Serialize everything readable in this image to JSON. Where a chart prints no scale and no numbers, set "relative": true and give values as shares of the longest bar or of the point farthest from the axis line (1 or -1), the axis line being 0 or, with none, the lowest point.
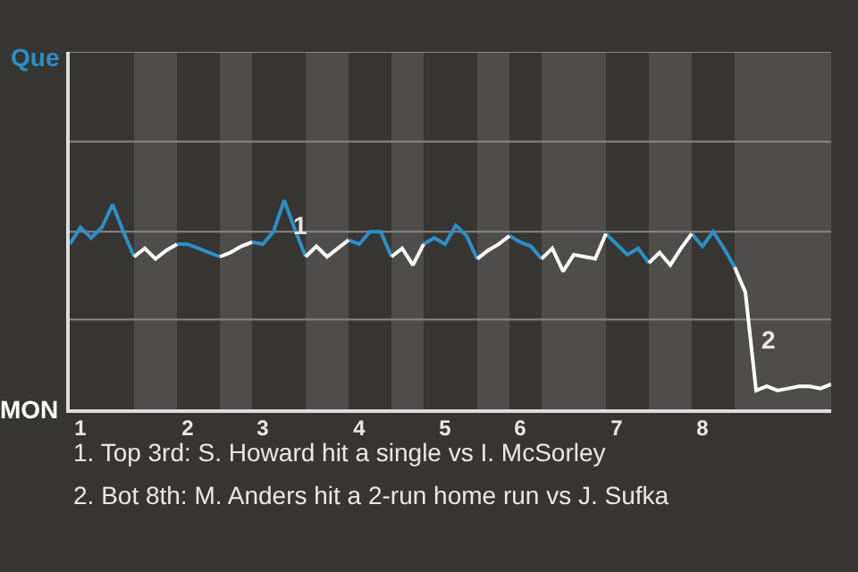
{
  "chart_data": {
    "type": "line",
    "relative": true,
    "categories": [
      null,
      "1",
      null,
      null,
      null,
      null,
      null,
      null,
      null,
      null,
      null,
      "2",
      null,
      null,
      null,
      null,
      null,
      null,
      "3",
      null,
      null,
      null,
      null,
      null,
      null,
      null,
      null,
      "4",
      null,
      null,
      null,
      null,
      null,
      null,
      null,
      "5",
      null,
      null,
      null,
      null,
      null,
      null,
      "6",
      null,
      null,
      null,
      null,
      null,
      null,
      null,
      null,
      "7",
      null,
      null,
      null,
      null,
      null,
      null,
      null,
      "8",
      null,
      null,
      null,
      null,
      null,
      null,
      null,
      null,
      null,
      null,
      null,
      null
    ],
    "series": [
      {
        "name": "Que",
        "color": "#2b8fc9",
        "values": [
          0.79,
          0.87,
          0.82,
          0.87,
          0.98,
          0.85,
          0.73,
          null,
          null,
          null,
          0.79,
          0.79,
          0.77,
          0.75,
          0.73,
          null,
          null,
          0.8,
          0.79,
          0.85,
          1,
          0.86,
          0.73,
          null,
          null,
          null,
          0.81,
          0.79,
          0.85,
          0.85,
          0.73,
          null,
          null,
          0.79,
          0.82,
          0.79,
          0.88,
          0.83,
          0.72,
          null,
          null,
          0.83,
          0.8,
          0.78,
          0.72,
          null,
          null,
          null,
          null,
          null,
          0.84,
          0.79,
          0.74,
          0.77,
          0.7,
          null,
          null,
          null,
          0.84,
          0.78,
          0.85,
          0.77,
          0.68,
          null,
          null,
          null,
          null,
          null,
          null,
          null,
          null,
          null
        ]
      },
      {
        "name": "MON",
        "color": "#ffffff",
        "values": [
          null,
          null,
          null,
          null,
          null,
          null,
          0.73,
          0.77,
          0.72,
          0.76,
          0.79,
          null,
          null,
          null,
          0.73,
          0.75,
          0.78,
          0.8,
          null,
          null,
          null,
          null,
          0.73,
          0.78,
          0.73,
          0.77,
          0.81,
          null,
          null,
          null,
          0.73,
          0.77,
          0.69,
          0.79,
          null,
          null,
          null,
          null,
          0.72,
          0.76,
          0.79,
          0.83,
          null,
          null,
          0.72,
          0.77,
          0.66,
          0.74,
          0.73,
          0.72,
          0.84,
          null,
          null,
          null,
          0.7,
          0.75,
          0.69,
          0.77,
          0.84,
          null,
          null,
          null,
          0.68,
          0.56,
          0.09,
          0.11,
          0.09,
          0.1,
          0.11,
          0.11,
          0.1,
          0.12
        ]
      }
    ],
    "ref_lines": [
      {
        "axis": "y",
        "value": 0.43,
        "color": "#8a8886"
      },
      {
        "axis": "y",
        "value": 0.85,
        "color": "#8a8886"
      },
      {
        "axis": "y",
        "value": 1.28,
        "color": "#8a8886"
      },
      {
        "axis": "y",
        "value": 1.71,
        "color": "#8a8886"
      }
    ],
    "annotations": [
      "1",
      "2",
      "1. Top 3rd: S. Howard hit a single vs I. McSorley",
      "2. Bot 8th: M. Anders hit a 2-run home run vs J. Sufka"
    ],
    "legend": false,
    "marker": "none",
    "line_style": "solid"
  }
}
